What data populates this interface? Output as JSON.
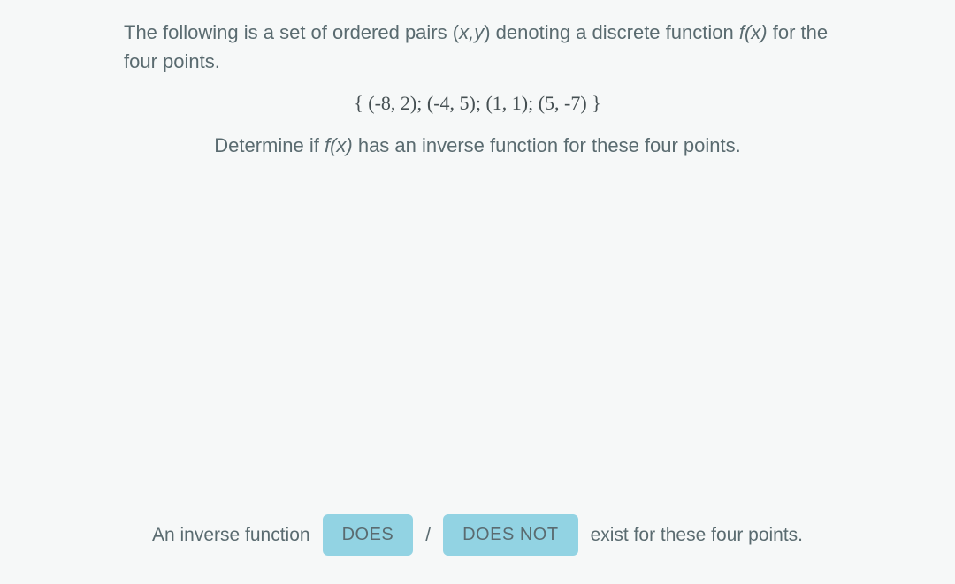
{
  "question": {
    "intro_part1": "The following is a set of ordered pairs (",
    "intro_xy": "x,y",
    "intro_part2": ") denoting a discrete function ",
    "intro_fx_f": "f",
    "intro_fx_x": "(x)",
    "intro_part3": " for the four points.",
    "math_set": "{ (-8, 2);  (-4, 5);  (1, 1);  (5, -7) }",
    "determine_part1": "Determine if ",
    "determine_fx_f": "f",
    "determine_fx_x": "(x)",
    "determine_part2": " has an inverse function for these four points."
  },
  "answer": {
    "prefix": "An inverse function",
    "choice_does": "DOES",
    "separator": "/",
    "choice_does_not": "DOES NOT",
    "suffix": "exist for these four points."
  },
  "styling": {
    "background_color": "#f6f8f8",
    "text_color": "#5a6b70",
    "button_background": "#92d3e3",
    "body_fontsize": 22,
    "button_fontsize": 20,
    "button_border_radius": 6
  }
}
